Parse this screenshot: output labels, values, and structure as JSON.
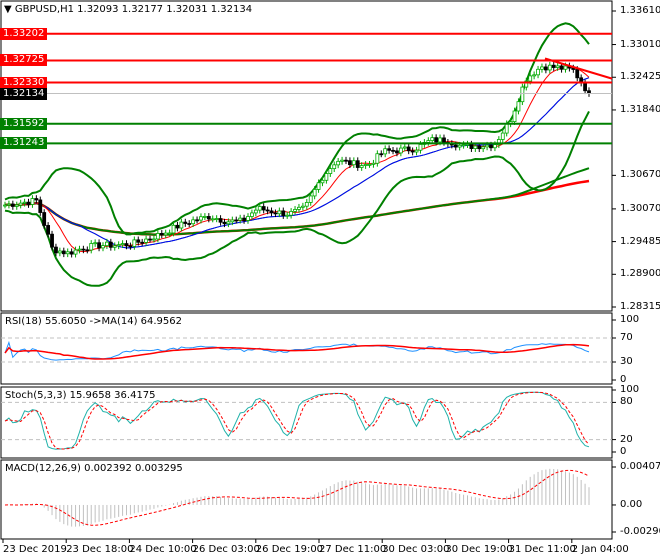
{
  "header": {
    "symbol_timeframe": "GBPUSD,H1",
    "ohlc": "1.32093 1.32177 1.32031 1.32134"
  },
  "colors": {
    "bull_candle": "#00aa00",
    "bear_candle": "#000000",
    "resistance": "#ff0000",
    "support": "#008000",
    "bollinger": "#008000",
    "ma_fast": "#ff0000",
    "ma_mid": "#0000ff",
    "rsi": "#1e90ff",
    "rsi_ma": "#ff0000",
    "stoch_main": "#20b2aa",
    "stoch_signal": "#ff0000",
    "macd_hist": "#c0c0c0",
    "macd_signal": "#ff0000",
    "bid_tag": "#000000"
  },
  "chart_data": [
    {
      "type": "candlestick",
      "title": "GBPUSD,H1",
      "ylim": [
        1.28315,
        1.3361
      ],
      "y_ticks": [
        "1.33610",
        "1.33010",
        "1.32425",
        "1.31840",
        "1.30670",
        "1.30070",
        "1.29485",
        "1.28900",
        "1.28315"
      ],
      "x_ticks": [
        "23 Dec 2019",
        "23 Dec 18:00",
        "24 Dec 10:00",
        "26 Dec 03:00",
        "26 Dec 19:00",
        "27 Dec 11:00",
        "30 Dec 03:00",
        "30 Dec 19:00",
        "31 Dec 11:00",
        "2 Jan 04:00"
      ],
      "close_approx": [
        1.3014,
        1.3018,
        1.3022,
        1.2935,
        1.2928,
        1.2938,
        1.2942,
        1.2942,
        1.2944,
        1.2953,
        1.2963,
        1.2977,
        1.2987,
        1.2994,
        1.2985,
        1.2985,
        1.3008,
        1.3002,
        1.2998,
        1.3008,
        1.306,
        1.3094,
        1.3088,
        1.3085,
        1.311,
        1.3112,
        1.3115,
        1.313,
        1.313,
        1.3118,
        1.312,
        1.3122,
        1.3165,
        1.324,
        1.3262,
        1.326,
        1.3255,
        1.3213
      ],
      "levels": [
        {
          "price": "1.33202",
          "kind": "resistance"
        },
        {
          "price": "1.32725",
          "kind": "resistance"
        },
        {
          "price": "1.32330",
          "kind": "resistance"
        },
        {
          "price": "1.31592",
          "kind": "support"
        },
        {
          "price": "1.31243",
          "kind": "support"
        }
      ],
      "bid": "1.32134",
      "trendline": {
        "from_price": 1.3276,
        "to_price": 1.324
      }
    },
    {
      "type": "line",
      "title": "RSI(18) 55.6050 ->MA(14) 64.9562",
      "ylim": [
        0,
        100
      ],
      "levels": [
        "100",
        "70",
        "30",
        "0"
      ]
    },
    {
      "type": "line",
      "title": "Stoch(5,3,3) 15.9658 36.4175",
      "ylim": [
        0,
        100
      ],
      "levels": [
        "100",
        "80",
        "20",
        "0"
      ]
    },
    {
      "type": "bar",
      "title": "MACD(12,26,9) 0.002392 0.003295",
      "ylim": [
        -0.002904,
        0.004078
      ],
      "levels": [
        "0.004078",
        "0.00",
        "-0.002904"
      ]
    }
  ]
}
